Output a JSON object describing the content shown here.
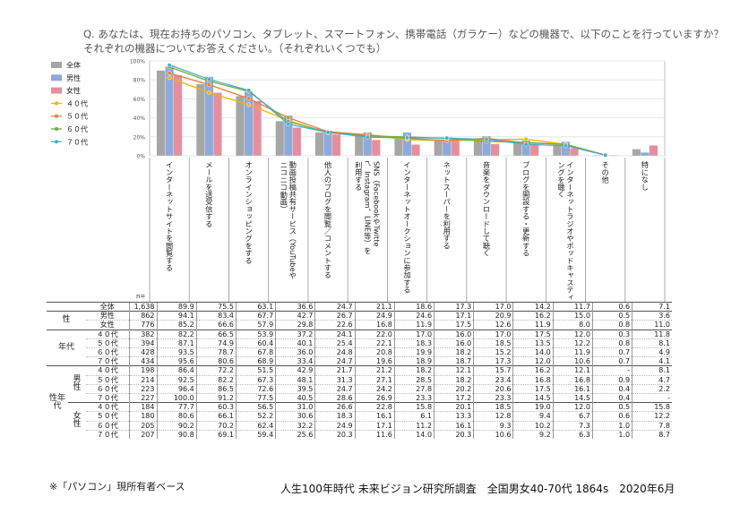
{
  "question": "Q. あなたは、現在お持ちのパソコン、タブレット、スマートフォン、携帯電話（ガラケー）などの機器で、以下のことを行っていますか？それぞれの機器についてお答えください。（それぞれいくつでも）",
  "footer_note": "※「パソコン」現所有者ベース",
  "footer_source": "人生100年時代 未来ビジョン研究所調査　全国男女40-70代 1864s　2020年6月",
  "n_label": "n=",
  "group_labels": {
    "sex": "性",
    "age": "年代",
    "sexage": "性年代",
    "male": "男性",
    "female": "女性"
  },
  "chart_data": {
    "type": "bar",
    "categories": [
      "インターネットサイトを閲覧する",
      "メールを送受信する",
      "オンラインショッピングをする",
      "動画投稿共有サービス（YouTubeやニコニコ動画）",
      "他人のブログを閲覧／コメントする",
      "SNS（FacebookやTwitter、Instagram、LINE等）を利用する",
      "インターネットオークションに参加する",
      "ネットスーパーを利用する",
      "音楽をダウンロードして聴く",
      "ブログを開設する・更新する",
      "インターネットラジオやポッドキャスティングを聴く",
      "その他",
      "特になし"
    ],
    "yticks": [
      "0%",
      "20%",
      "40%",
      "60%",
      "80%",
      "100%"
    ],
    "ylim": [
      0,
      100
    ],
    "bar_series": [
      {
        "name": "全体",
        "color": "#a6a6a6",
        "values": [
          89.9,
          75.5,
          63.1,
          36.6,
          24.7,
          21.1,
          18.6,
          17.3,
          17.0,
          14.2,
          11.7,
          0.6,
          7.1
        ]
      },
      {
        "name": "男性",
        "color": "#8eaadb",
        "values": [
          94.1,
          83.4,
          67.7,
          42.7,
          26.7,
          24.9,
          24.6,
          17.1,
          20.9,
          16.2,
          15.0,
          0.5,
          3.6
        ]
      },
      {
        "name": "女性",
        "color": "#e58f9e",
        "values": [
          85.2,
          66.6,
          57.9,
          29.8,
          22.6,
          16.8,
          11.9,
          17.5,
          12.6,
          11.9,
          8.0,
          0.8,
          11.0
        ]
      }
    ],
    "line_series": [
      {
        "name": "４０代",
        "color": "#f4b400",
        "values": [
          82.2,
          66.5,
          53.9,
          37.2,
          24.1,
          22.0,
          17.0,
          16.0,
          17.0,
          17.5,
          12.0,
          0.3,
          11.8
        ]
      },
      {
        "name": "５０代",
        "color": "#ed7d31",
        "values": [
          87.1,
          74.9,
          60.4,
          40.1,
          25.4,
          22.1,
          18.3,
          16.0,
          18.5,
          13.5,
          12.2,
          0.8,
          8.1
        ]
      },
      {
        "name": "６０代",
        "color": "#70ad47",
        "values": [
          93.5,
          78.7,
          67.8,
          36.0,
          24.8,
          20.8,
          19.9,
          18.2,
          15.2,
          14.0,
          11.9,
          0.7,
          4.9
        ]
      },
      {
        "name": "７０代",
        "color": "#4bacc6",
        "values": [
          95.6,
          80.6,
          68.9,
          33.4,
          24.7,
          19.6,
          18.9,
          18.7,
          17.3,
          12.0,
          10.6,
          0.7,
          4.1
        ]
      }
    ]
  },
  "table": {
    "rows": [
      {
        "g": "",
        "s": "",
        "label": "全体",
        "n": "1,638",
        "v": [
          "89.9",
          "75.5",
          "63.1",
          "36.6",
          "24.7",
          "21.1",
          "18.6",
          "17.3",
          "17.0",
          "14.2",
          "11.7",
          "0.6",
          "7.1"
        ]
      },
      {
        "g": "sex",
        "s": "",
        "label": "男性",
        "n": "862",
        "v": [
          "94.1",
          "83.4",
          "67.7",
          "42.7",
          "26.7",
          "24.9",
          "24.6",
          "17.1",
          "20.9",
          "16.2",
          "15.0",
          "0.5",
          "3.6"
        ]
      },
      {
        "g": "sex",
        "s": "",
        "label": "女性",
        "n": "776",
        "v": [
          "85.2",
          "66.6",
          "57.9",
          "29.8",
          "22.6",
          "16.8",
          "11.9",
          "17.5",
          "12.6",
          "11.9",
          "8.0",
          "0.8",
          "11.0"
        ]
      },
      {
        "g": "age",
        "s": "",
        "label": "４０代",
        "n": "382",
        "v": [
          "82.2",
          "66.5",
          "53.9",
          "37.2",
          "24.1",
          "22.0",
          "17.0",
          "16.0",
          "17.0",
          "17.5",
          "12.0",
          "0.3",
          "11.8"
        ]
      },
      {
        "g": "age",
        "s": "",
        "label": "５０代",
        "n": "394",
        "v": [
          "87.1",
          "74.9",
          "60.4",
          "40.1",
          "25.4",
          "22.1",
          "18.3",
          "16.0",
          "18.5",
          "13.5",
          "12.2",
          "0.8",
          "8.1"
        ]
      },
      {
        "g": "age",
        "s": "",
        "label": "６０代",
        "n": "428",
        "v": [
          "93.5",
          "78.7",
          "67.8",
          "36.0",
          "24.8",
          "20.8",
          "19.9",
          "18.2",
          "15.2",
          "14.0",
          "11.9",
          "0.7",
          "4.9"
        ]
      },
      {
        "g": "age",
        "s": "",
        "label": "７０代",
        "n": "434",
        "v": [
          "95.6",
          "80.6",
          "68.9",
          "33.4",
          "24.7",
          "19.6",
          "18.9",
          "18.7",
          "17.3",
          "12.0",
          "10.6",
          "0.7",
          "4.1"
        ]
      },
      {
        "g": "sexage",
        "s": "male",
        "label": "４０代",
        "n": "198",
        "v": [
          "86.4",
          "72.2",
          "51.5",
          "42.9",
          "21.7",
          "21.2",
          "18.2",
          "12.1",
          "15.7",
          "16.2",
          "12.1",
          "-",
          "8.1"
        ]
      },
      {
        "g": "sexage",
        "s": "male",
        "label": "５０代",
        "n": "214",
        "v": [
          "92.5",
          "82.2",
          "67.3",
          "48.1",
          "31.3",
          "27.1",
          "28.5",
          "18.2",
          "23.4",
          "16.8",
          "16.8",
          "0.9",
          "4.7"
        ]
      },
      {
        "g": "sexage",
        "s": "male",
        "label": "６０代",
        "n": "223",
        "v": [
          "96.4",
          "86.5",
          "72.6",
          "39.5",
          "24.7",
          "24.2",
          "27.8",
          "20.2",
          "20.6",
          "17.5",
          "16.1",
          "0.4",
          "2.2"
        ]
      },
      {
        "g": "sexage",
        "s": "male",
        "label": "７０代",
        "n": "227",
        "v": [
          "100.0",
          "91.2",
          "77.5",
          "40.5",
          "28.6",
          "26.9",
          "23.3",
          "17.2",
          "23.3",
          "14.5",
          "14.5",
          "0.4",
          "-"
        ]
      },
      {
        "g": "sexage",
        "s": "female",
        "label": "４０代",
        "n": "184",
        "v": [
          "77.7",
          "60.3",
          "56.5",
          "31.0",
          "26.6",
          "22.8",
          "15.8",
          "20.1",
          "18.5",
          "19.0",
          "12.0",
          "0.5",
          "15.8"
        ]
      },
      {
        "g": "sexage",
        "s": "female",
        "label": "５０代",
        "n": "180",
        "v": [
          "80.6",
          "66.1",
          "52.2",
          "30.6",
          "18.3",
          "16.1",
          "6.1",
          "13.3",
          "12.8",
          "9.4",
          "6.7",
          "0.6",
          "12.2"
        ]
      },
      {
        "g": "sexage",
        "s": "female",
        "label": "６０代",
        "n": "205",
        "v": [
          "90.2",
          "70.2",
          "62.4",
          "32.2",
          "24.9",
          "17.1",
          "11.2",
          "16.1",
          "9.3",
          "10.2",
          "7.3",
          "1.0",
          "7.8"
        ]
      },
      {
        "g": "sexage",
        "s": "female",
        "label": "７０代",
        "n": "207",
        "v": [
          "90.8",
          "69.1",
          "59.4",
          "25.6",
          "20.3",
          "11.6",
          "14.0",
          "20.3",
          "10.6",
          "9.2",
          "6.3",
          "1.0",
          "8.7"
        ]
      }
    ]
  }
}
